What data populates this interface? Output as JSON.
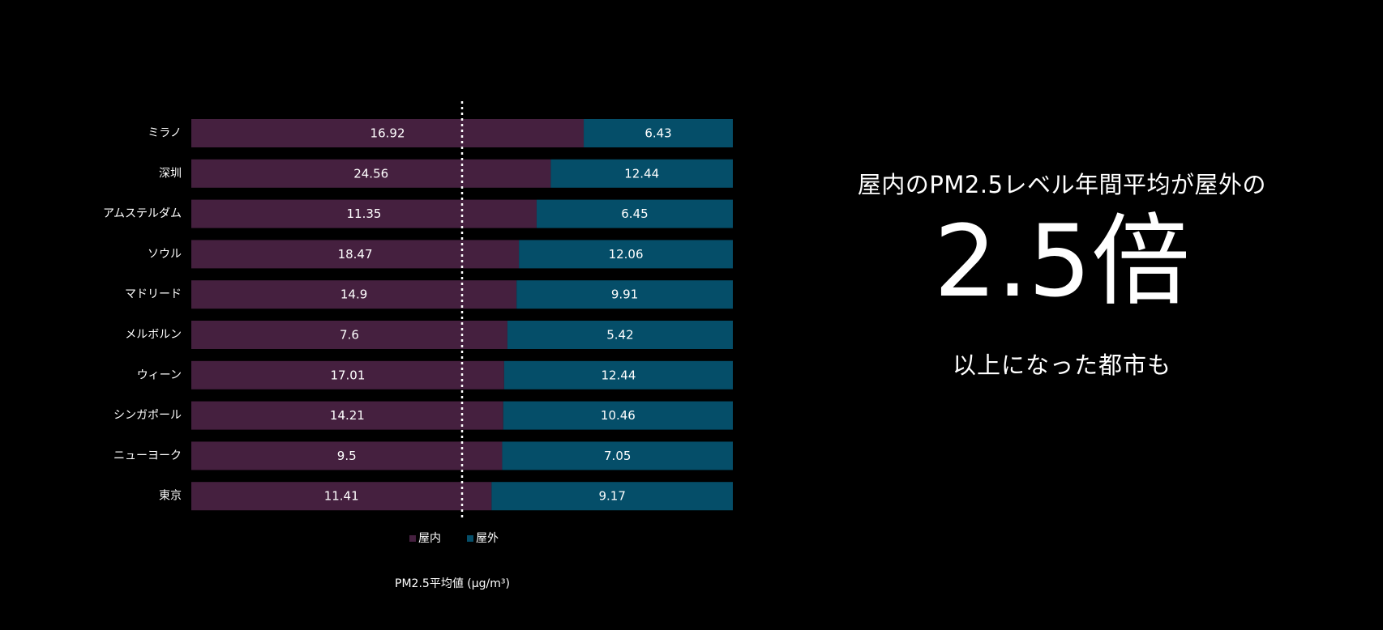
{
  "chart_data": {
    "type": "bar",
    "orientation": "horizontal",
    "stacked": "percent",
    "categories": [
      "ミラノ",
      "深圳",
      "アムステルダム",
      "ソウル",
      "マドリード",
      "メルボルン",
      "ウィーン",
      "シンガポール",
      "ニューヨーク",
      "東京"
    ],
    "series": [
      {
        "name": "屋内",
        "color": "#45203f",
        "values": [
          16.92,
          24.56,
          11.35,
          18.47,
          14.9,
          7.6,
          17.01,
          14.21,
          9.5,
          11.41
        ],
        "labels": [
          "16.92",
          "24.56",
          "11.35",
          "18.47",
          "14.9",
          "7.6",
          "17.01",
          "14.21",
          "9.5",
          "11.41"
        ]
      },
      {
        "name": "屋外",
        "color": "#054e69",
        "values": [
          6.43,
          12.44,
          6.45,
          12.06,
          9.91,
          5.42,
          12.44,
          10.46,
          7.05,
          9.17
        ],
        "labels": [
          "6.43",
          "12.44",
          "6.45",
          "12.06",
          "9.91",
          "5.42",
          "12.44",
          "10.46",
          "7.05",
          "9.17"
        ]
      }
    ],
    "reference_line": {
      "value": 0.5,
      "style": "dotted",
      "color": "#ffffff"
    },
    "xlabel": "PM2.5平均値 (μg/m³)",
    "legend_position": "bottom"
  },
  "headline": {
    "line1": "屋内のPM2.5レベル年間平均が屋外の",
    "big": "2.5倍",
    "line2": "以上になった都市も"
  }
}
